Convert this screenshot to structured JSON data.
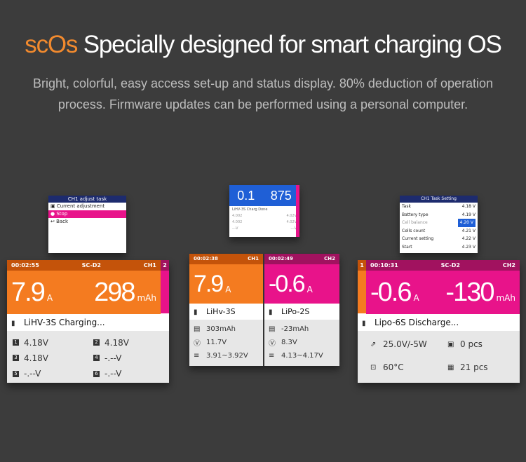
{
  "hero": {
    "brand": "scOs",
    "title_rest": "Specially designed for smart charging OS",
    "desc": "Bright, colorful, easy access set-up and status display. 80% deduction of operation process. Firmware updates can be performed using a personal computer."
  },
  "colors": {
    "orange": "#f47b20",
    "magenta": "#e8138a",
    "dark_orange": "#c4530a",
    "dark_magenta": "#a1125f",
    "bg": "#3c3c3c"
  },
  "popup_left": {
    "title": "CH1 adjust task",
    "items": [
      "Current adjustment",
      "Stop",
      "Back"
    ],
    "selected": 1
  },
  "popup_mid": {
    "big_left": "0.1",
    "big_right": "875",
    "status": "LiHV-3S Charg Done",
    "rows": [
      [
        "4.002",
        "4.02V"
      ],
      [
        "4.002",
        "4.02V"
      ],
      [
        "---V",
        "---V"
      ]
    ]
  },
  "popup_right": {
    "title": "CH1 Task Setting",
    "items": [
      [
        "Task",
        "4.18 V"
      ],
      [
        "Battery type",
        "4.19 V"
      ],
      [
        "Cell balance",
        "4.20 V"
      ],
      [
        "Cells count",
        "4.21 V"
      ],
      [
        "Current setting",
        "4.22 V"
      ],
      [
        "Start",
        "4.23 V"
      ]
    ],
    "selected": 2
  },
  "screen_left": {
    "time": "00:02:55",
    "mode": "SC-D2",
    "channel": "CH1",
    "side_tab": "2",
    "current": "7.9",
    "current_unit": "A",
    "capacity": "298",
    "capacity_unit": "mAh",
    "state": "LiHV-3S Charging...",
    "cells": [
      [
        "1",
        "4.18V"
      ],
      [
        "2",
        "4.18V"
      ],
      [
        "3",
        "4.18V"
      ],
      [
        "4",
        "-.--V"
      ],
      [
        "5",
        "-.--V"
      ],
      [
        "6",
        "-.--V"
      ]
    ]
  },
  "screen_mid": {
    "ch1": {
      "time": "00:02:38",
      "channel": "CH1",
      "current": "7.9",
      "unit": "A",
      "battery": "LiHv-3S",
      "capacity": "303mAh",
      "voltage": "11.7V",
      "range": "3.91~3.92V"
    },
    "ch2": {
      "time": "00:02:49",
      "channel": "CH2",
      "current": "-0.6",
      "unit": "A",
      "battery": "LiPo-2S",
      "capacity": "-23mAh",
      "voltage": "8.3V",
      "range": "4.13~4.17V"
    }
  },
  "screen_right": {
    "side_tab": "1",
    "time": "00:10:31",
    "mode": "SC-D2",
    "channel": "CH2",
    "current": "-0.6",
    "current_unit": "A",
    "capacity": "-130",
    "capacity_unit": "mAh",
    "state": "Lipo-6S Discharge...",
    "power": "25.0V/-5W",
    "temp": "60°C",
    "pcs1": "0 pcs",
    "pcs2": "21 pcs"
  }
}
